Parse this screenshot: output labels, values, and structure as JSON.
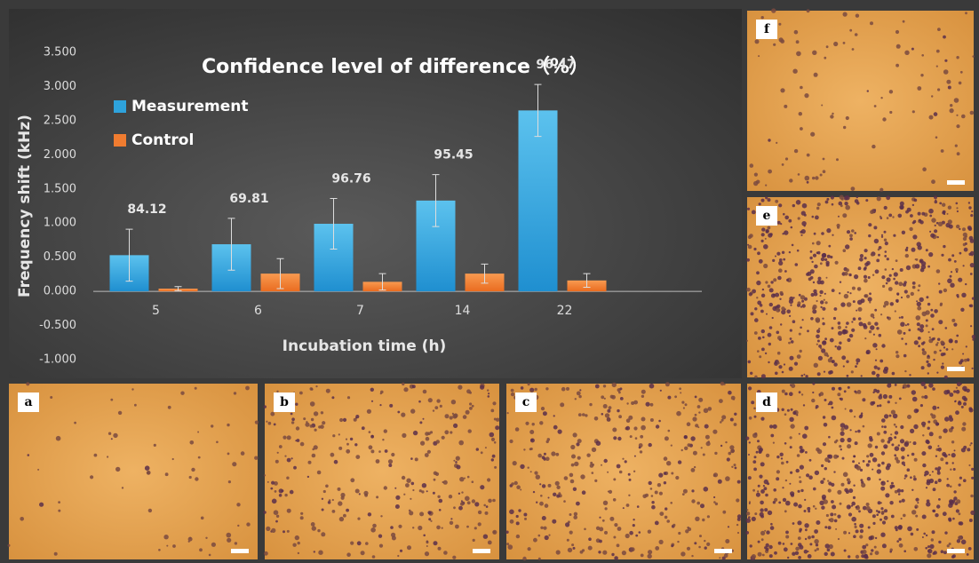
{
  "chart_data": {
    "type": "bar",
    "title": "Confidence level of difference（%）",
    "x_label": "Incubation time (h)",
    "y_label": "Frequency shift (kHz)",
    "categories": [
      "5",
      "6",
      "7",
      "14",
      "22"
    ],
    "series": [
      {
        "name": "Measurement",
        "color": "#2ea3dc",
        "values": [
          0.53,
          0.69,
          0.99,
          1.33,
          2.65
        ],
        "errors": [
          0.38,
          0.38,
          0.37,
          0.38,
          0.38
        ]
      },
      {
        "name": "Control",
        "color": "#f07c30",
        "values": [
          0.04,
          0.26,
          0.14,
          0.26,
          0.16
        ],
        "errors": [
          0.03,
          0.22,
          0.12,
          0.14,
          0.1
        ]
      }
    ],
    "confidence": [
      84.12,
      69.81,
      96.76,
      95.45,
      96.47
    ],
    "ylim": [
      -1.0,
      3.5
    ],
    "yticks": [
      {
        "value": -1.0,
        "label": "-1.000"
      },
      {
        "value": -0.5,
        "label": "-0.500"
      },
      {
        "value": 0,
        "label": "0.000"
      },
      {
        "value": 0.5,
        "label": "0.500"
      },
      {
        "value": 1.0,
        "label": "1.000"
      },
      {
        "value": 1.5,
        "label": "1.500"
      },
      {
        "value": 2.0,
        "label": "2.000"
      },
      {
        "value": 2.5,
        "label": "2.500"
      },
      {
        "value": 3.0,
        "label": "3.000"
      },
      {
        "value": 3.5,
        "label": "3.500"
      }
    ],
    "legend": "top-left",
    "grid": false
  },
  "panels": [
    "a",
    "b",
    "c",
    "d",
    "e",
    "f"
  ]
}
